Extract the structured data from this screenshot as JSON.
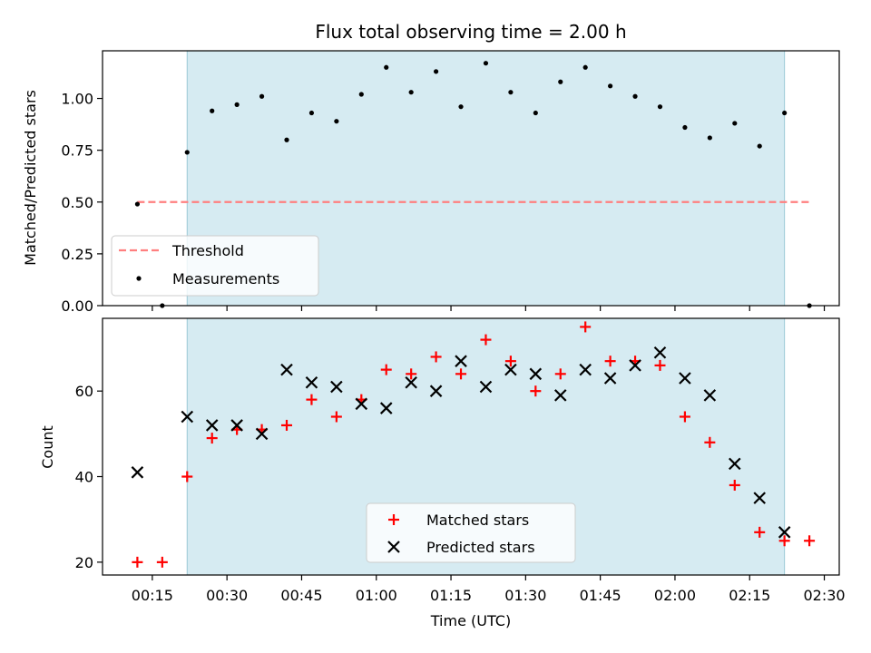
{
  "chart_data": [
    {
      "type": "scatter",
      "title": "Flux total observing time = 2.00 h",
      "xlabel": "",
      "ylabel": "Matched/Predicted stars",
      "ylim": [
        0,
        1.23
      ],
      "yticks": [
        "0.00",
        "0.25",
        "0.50",
        "0.75",
        "1.00"
      ],
      "ytick_values": [
        0,
        0.25,
        0.5,
        0.75,
        1.0
      ],
      "shaded_span": [
        "00:22",
        "02:22"
      ],
      "shade_color": "#add8e6",
      "grid": false,
      "legend_position": "lower-left",
      "series": [
        {
          "name": "Threshold",
          "style": "dashed-line",
          "color": "#ff7f7f",
          "x": [
            "00:12",
            "02:27"
          ],
          "y": [
            0.5,
            0.5
          ]
        },
        {
          "name": "Measurements",
          "style": "dot",
          "color": "#000000",
          "x": [
            "00:12",
            "00:17",
            "00:22",
            "00:27",
            "00:32",
            "00:37",
            "00:42",
            "00:47",
            "00:52",
            "00:57",
            "01:02",
            "01:07",
            "01:12",
            "01:17",
            "01:22",
            "01:27",
            "01:32",
            "01:37",
            "01:42",
            "01:47",
            "01:52",
            "01:57",
            "02:02",
            "02:07",
            "02:12",
            "02:17",
            "02:22",
            "02:27"
          ],
          "y": [
            0.49,
            0.0,
            0.74,
            0.94,
            0.97,
            1.01,
            0.8,
            0.93,
            0.89,
            1.02,
            1.15,
            1.03,
            1.13,
            0.96,
            1.17,
            1.03,
            0.93,
            1.08,
            1.15,
            1.06,
            1.01,
            0.96,
            0.86,
            0.81,
            0.88,
            0.77,
            0.93,
            0.0
          ]
        }
      ]
    },
    {
      "type": "scatter",
      "title": "",
      "xlabel": "Time (UTC)",
      "ylabel": "Count",
      "ylim": [
        17,
        77
      ],
      "yticks": [
        "20",
        "40",
        "60"
      ],
      "ytick_values": [
        20,
        40,
        60
      ],
      "xticks": [
        "00:15",
        "00:30",
        "00:45",
        "01:00",
        "01:15",
        "01:30",
        "01:45",
        "02:00",
        "02:15",
        "02:30"
      ],
      "xtick_values": [
        "00:15",
        "00:30",
        "00:45",
        "01:00",
        "01:15",
        "01:30",
        "01:45",
        "02:00",
        "02:15",
        "02:30"
      ],
      "xlim": [
        "00:05",
        "02:33"
      ],
      "shaded_span": [
        "00:22",
        "02:22"
      ],
      "shade_color": "#add8e6",
      "grid": false,
      "legend_position": "lower-center",
      "series": [
        {
          "name": "Matched stars",
          "style": "plus",
          "color": "#ff0000",
          "x": [
            "00:12",
            "00:17",
            "00:22",
            "00:27",
            "00:32",
            "00:37",
            "00:42",
            "00:47",
            "00:52",
            "00:57",
            "01:02",
            "01:07",
            "01:12",
            "01:17",
            "01:22",
            "01:27",
            "01:32",
            "01:37",
            "01:42",
            "01:47",
            "01:52",
            "01:57",
            "02:02",
            "02:07",
            "02:12",
            "02:17",
            "02:22",
            "02:27"
          ],
          "y": [
            20,
            20,
            40,
            49,
            51,
            51,
            52,
            58,
            54,
            58,
            65,
            64,
            68,
            64,
            72,
            67,
            60,
            64,
            75,
            67,
            67,
            66,
            54,
            48,
            38,
            27,
            25,
            25
          ]
        },
        {
          "name": "Predicted stars",
          "style": "x",
          "color": "#000000",
          "x": [
            "00:12",
            "00:22",
            "00:27",
            "00:32",
            "00:37",
            "00:42",
            "00:47",
            "00:52",
            "00:57",
            "01:02",
            "01:07",
            "01:12",
            "01:17",
            "01:22",
            "01:27",
            "01:32",
            "01:37",
            "01:42",
            "01:47",
            "01:52",
            "01:57",
            "02:02",
            "02:07",
            "02:12",
            "02:17",
            "02:22"
          ],
          "y": [
            41,
            54,
            52,
            52,
            50,
            65,
            62,
            61,
            57,
            56,
            62,
            60,
            67,
            61,
            65,
            64,
            59,
            65,
            63,
            66,
            69,
            63,
            59,
            43,
            35,
            27
          ]
        }
      ]
    }
  ]
}
